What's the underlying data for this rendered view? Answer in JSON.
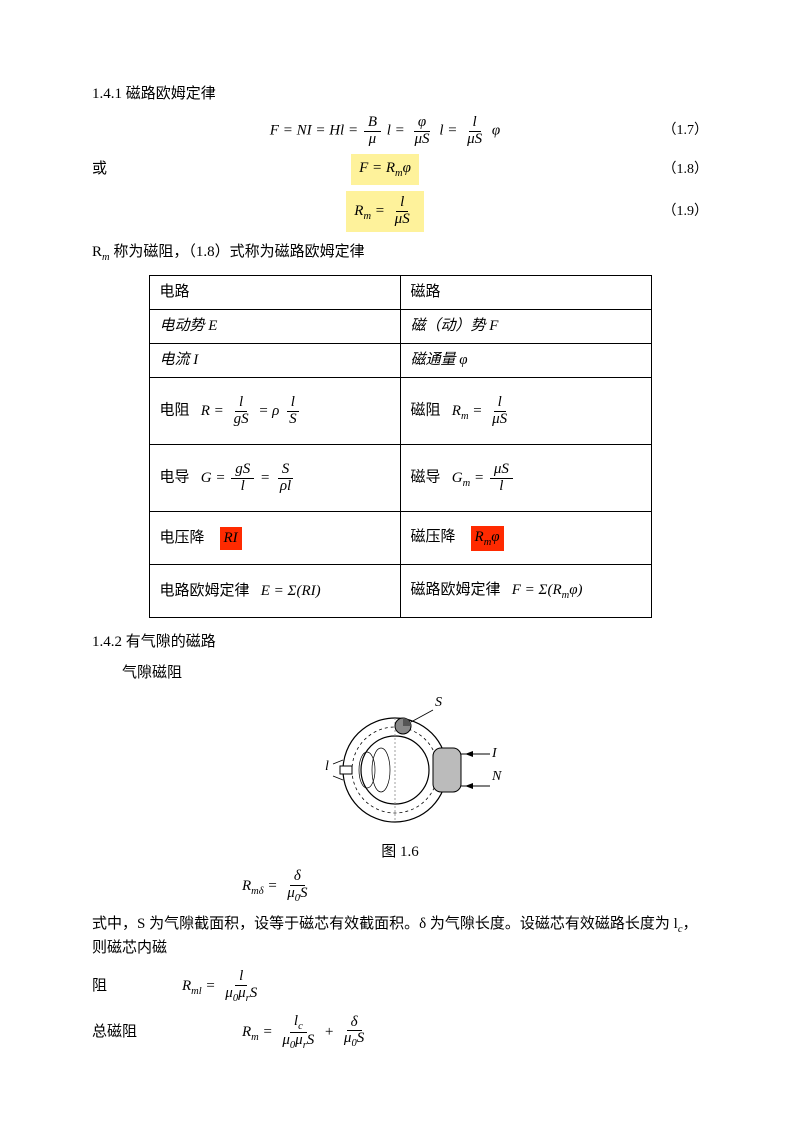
{
  "sec141": {
    "title": "1.4.1 磁路欧姆定律",
    "or_word": "或",
    "note_html": "R<sub class='sm'>m</sub> 称为磁阻，（1.8）式称为磁路欧姆定律"
  },
  "eq17": {
    "num": "（1.7）",
    "lhs": "F = NI = Hl =",
    "f1_num": "B",
    "f1_den": "μ",
    "after_f1": "l =",
    "f2_num": "φ",
    "f2_den": "μS",
    "after_f2": "l =",
    "f3_num": "l",
    "f3_den": "μS",
    "after_f3": "φ"
  },
  "eq18": {
    "num": "（1.8）",
    "body_html": "F = R<sub class='sm'>m</sub>φ"
  },
  "eq19": {
    "num": "（1.9）",
    "lhs_html": "R<sub class='sm'>m</sub> =",
    "frac_num": "l",
    "frac_den": "μS"
  },
  "table": {
    "hdr_left": "电路",
    "hdr_right": "磁路",
    "row1_left": "电动势  E",
    "row1_right": "磁（动）势   F",
    "row2_left": "电流    I",
    "row2_right": "磁通量       φ",
    "r3_l_label": "电阻",
    "r3_l_lhs": "R =",
    "r3_l_f1_num": "l",
    "r3_l_f1_den": "gS",
    "r3_l_mid": "= ρ",
    "r3_l_f2_num": "l",
    "r3_l_f2_den": "S",
    "r3_r_label": "磁阻",
    "r3_r_lhs_html": "R<sub class='sm'>m</sub> =",
    "r3_r_f_num": "l",
    "r3_r_f_den": "μS",
    "r4_l_label": "电导",
    "r4_l_lhs": "G =",
    "r4_l_f1_num": "gS",
    "r4_l_f1_den": "l",
    "r4_l_mid": "=",
    "r4_l_f2_num": "S",
    "r4_l_f2_den": "ρl",
    "r4_r_label": "磁导",
    "r4_r_lhs_html": "G<sub class='sm'>m</sub> =",
    "r4_r_f_num": "μS",
    "r4_r_f_den": "l",
    "r5_l_label": "电压降",
    "r5_l_hl": "RI",
    "r5_r_label": "磁压降",
    "r5_r_hl_html": "R<sub class='sm'>m</sub>φ",
    "r6_l_label": "电路欧姆定律",
    "r6_l_eq": "E = Σ(RI)",
    "r6_r_label": "磁路欧姆定律",
    "r6_r_eq_html": "F = Σ(R<sub class='sm'>m</sub>φ)"
  },
  "sec142": {
    "title": "1.4.2 有气隙的磁路",
    "sub": "气隙磁阻",
    "fig_caption": "图 1.6",
    "fig_labels": {
      "S": "S",
      "l": "l",
      "I": "I",
      "N": "N"
    }
  },
  "eq_gap": {
    "lhs_html": "R<sub class='sm'>mδ</sub> =",
    "num": "δ",
    "den_html": "μ<sub class='sm'>0</sub>S"
  },
  "para_gap": "式中，S 为气隙截面积，设等于磁芯有效截面积。δ 为气隙长度。设磁芯有效磁路长度为 l",
  "para_gap_sub": "c",
  "para_gap_tail": "，则磁芯内磁",
  "line_core": {
    "label": "阻",
    "lhs_html": "R<sub class='sm'>ml</sub> =",
    "num": "l",
    "den_html": "μ<sub class='sm'>0</sub>μ<sub class='sm'>r</sub>S"
  },
  "line_total": {
    "label": "总磁阻",
    "lhs_html": "R<sub class='sm'>m</sub> =",
    "f1_num_html": "l<sub class='sm'>c</sub>",
    "f1_den_html": "μ<sub class='sm'>0</sub>μ<sub class='sm'>r</sub>S",
    "plus": "+",
    "f2_num": "δ",
    "f2_den_html": "μ<sub class='sm'>0</sub>S"
  },
  "colors": {
    "highlight_yellow": "#fef29b",
    "highlight_red": "#ff2a00"
  }
}
